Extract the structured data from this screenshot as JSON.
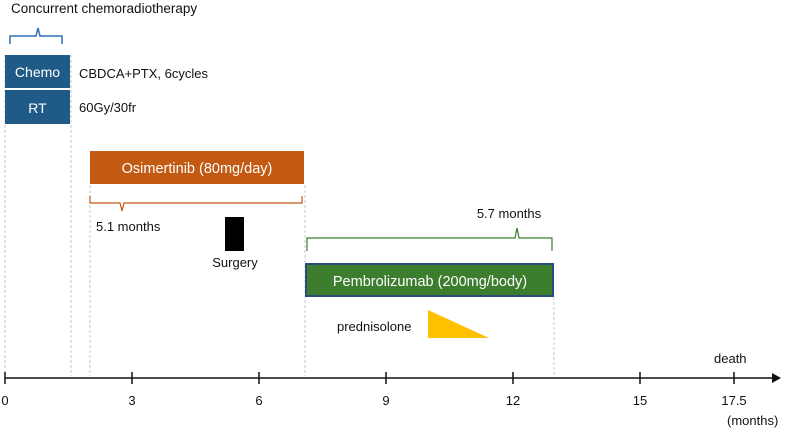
{
  "title": "Concurrent chemoradiotherapy",
  "therapies": {
    "chemo": {
      "label": "Chemo",
      "detail": "CBDCA+PTX, 6cycles"
    },
    "rt": {
      "label": "RT",
      "detail": "60Gy/30fr"
    },
    "osimertinib": {
      "label": "Osimertinib (80mg/day)",
      "duration": "5.1 months"
    },
    "surgery": {
      "label": "Surgery"
    },
    "pembrolizumab": {
      "label": "Pembrolizumab (200mg/body)",
      "duration": "5.7 months"
    },
    "prednisolone": {
      "label": "prednisolone"
    }
  },
  "axis": {
    "ticks": [
      "0",
      "3",
      "6",
      "9",
      "12",
      "15",
      "17.5"
    ],
    "unit": "(months)",
    "end_event": "death"
  },
  "colors": {
    "chemo_rt": "#1f5b86",
    "osimertinib": "#c35a14",
    "pembrolizumab": "#3c7d2e",
    "prednisolone": "#ffc000",
    "bracket_blue": "#2f6eb5",
    "bracket_orange": "#c35a14",
    "bracket_green": "#3c7d2e",
    "surgery": "#000000",
    "axis": "#111111",
    "guide": "#c8c8c8"
  },
  "chart_data": {
    "type": "timeline",
    "unit": "months",
    "xlim": [
      0,
      18
    ],
    "events": [
      {
        "name": "Chemo",
        "start": 0,
        "end": 1.6
      },
      {
        "name": "RT",
        "start": 0,
        "end": 1.6
      },
      {
        "name": "Osimertinib",
        "start": 2.0,
        "end": 7.1
      },
      {
        "name": "Surgery",
        "at": 5.4
      },
      {
        "name": "Pembrolizumab",
        "start": 7.1,
        "end": 12.8
      },
      {
        "name": "prednisolone",
        "start": 10.0,
        "end": 11.5
      },
      {
        "name": "death",
        "at": 17.5
      }
    ]
  }
}
